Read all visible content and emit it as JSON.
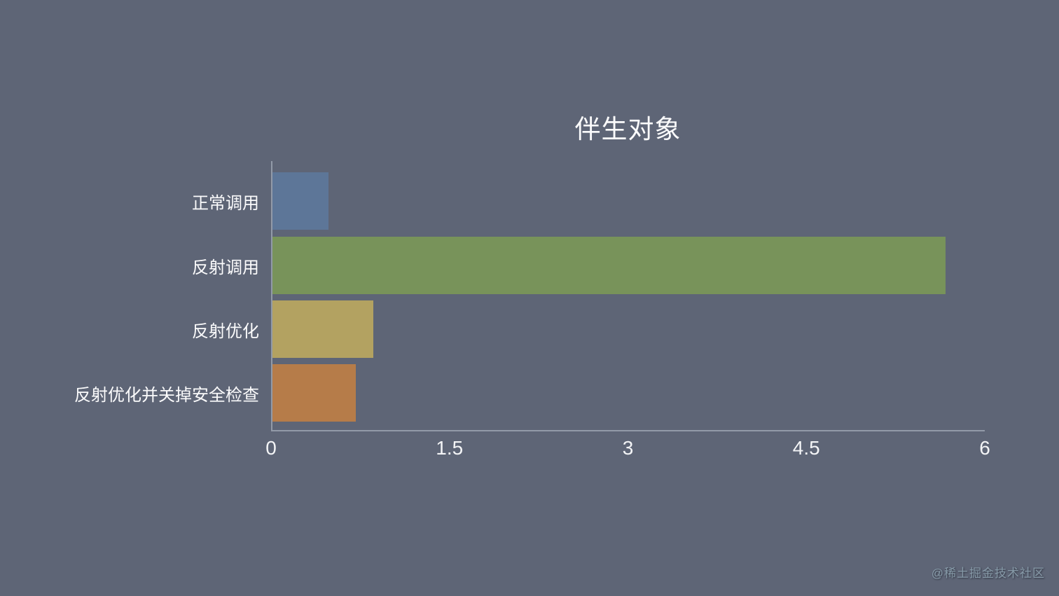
{
  "chart_data": {
    "type": "bar",
    "orientation": "horizontal",
    "title": "伴生对象",
    "categories": [
      "正常调用",
      "反射调用",
      "反射优化",
      "反射优化并关掉安全检查"
    ],
    "values": [
      0.47,
      5.66,
      0.85,
      0.7
    ],
    "bar_colors": [
      "#5d7698",
      "#78935a",
      "#b3a261",
      "#b67c49"
    ],
    "xlabel": "",
    "ylabel": "",
    "xlim": [
      0,
      6
    ],
    "xtick_labels": [
      "0",
      "1.5",
      "3",
      "4.5",
      "6"
    ],
    "xtick_values": [
      0,
      1.5,
      3,
      4.5,
      6
    ],
    "grid": false,
    "legend": false,
    "background_color": "#5e6576",
    "axis_color": "rgba(190,198,210,0.55)",
    "text_color": "#fbfbfc"
  },
  "watermark": "@稀土掘金技术社区"
}
